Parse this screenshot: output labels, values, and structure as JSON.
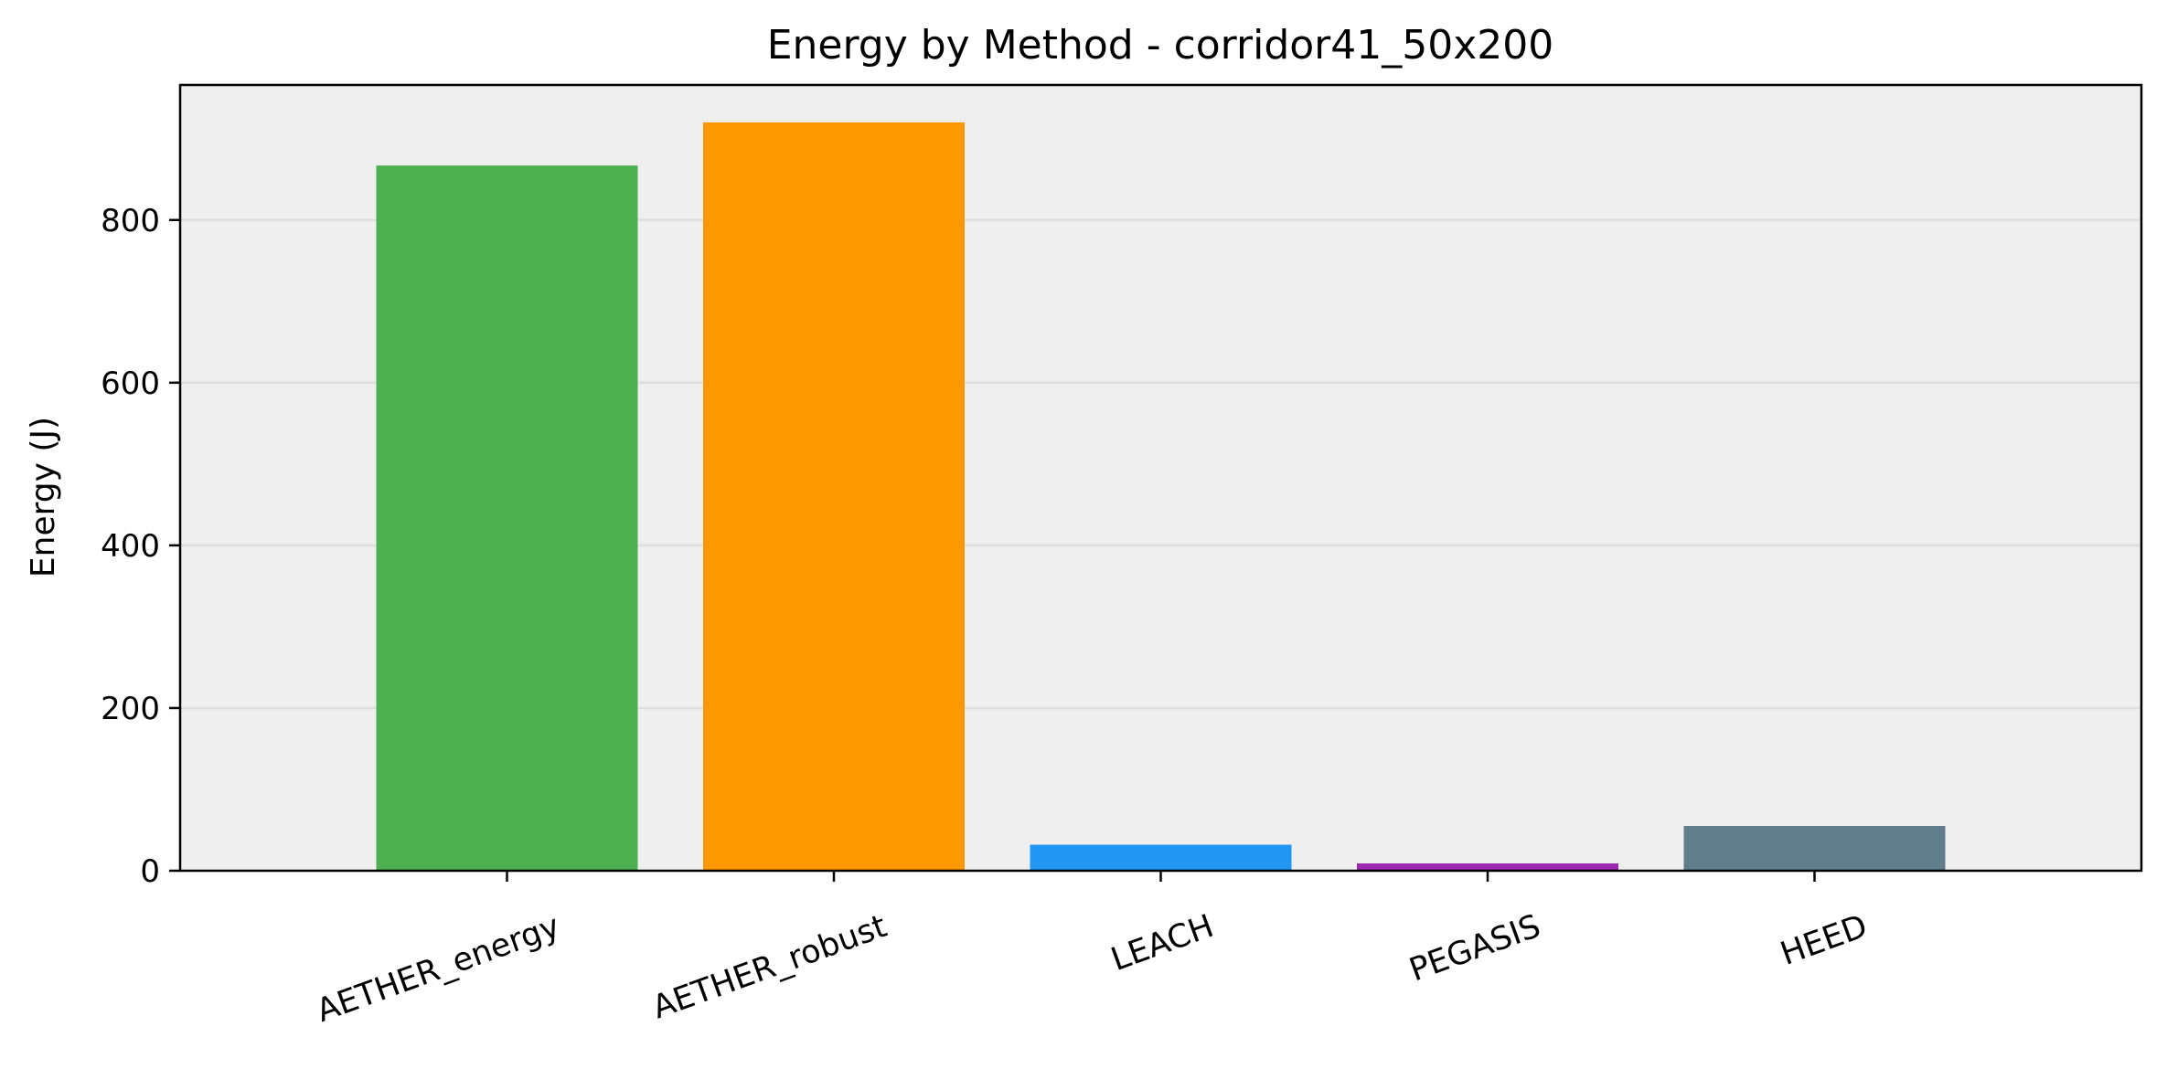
{
  "chart_data": {
    "type": "bar",
    "title": "Energy by Method - corridor41_50x200",
    "xlabel": "",
    "ylabel": "Energy (J)",
    "categories": [
      "AETHER_energy",
      "AETHER_robust",
      "LEACH",
      "PEGASIS",
      "HEED"
    ],
    "values": [
      867,
      920,
      32,
      9,
      55
    ],
    "colors": [
      "#4caf50",
      "#ff9800",
      "#2196f3",
      "#9c27b0",
      "#607d8b"
    ],
    "ylim": [
      0,
      966
    ],
    "yticks": [
      0,
      200,
      400,
      600,
      800
    ],
    "grid": "y-only",
    "x_tick_rotation_deg": -20
  }
}
